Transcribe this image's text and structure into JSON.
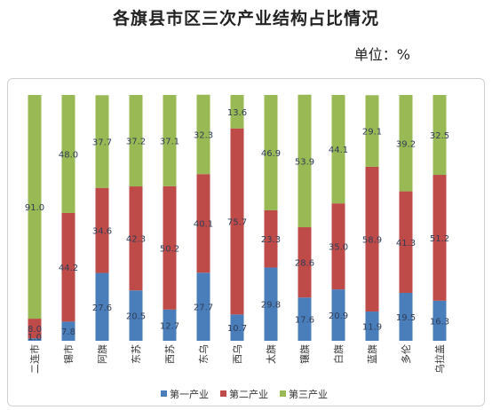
{
  "chart_data": {
    "type": "bar",
    "stacked": true,
    "title": "各旗县市区三次产业结构占比情况",
    "unit": "单位：%",
    "categories": [
      "二连市",
      "锡市",
      "阿旗",
      "东苏",
      "西苏",
      "东乌",
      "西乌",
      "太旗",
      "镶旗",
      "白旗",
      "蓝旗",
      "多伦",
      "乌拉盖"
    ],
    "series": [
      {
        "name": "第一产业",
        "color": "#4a7ebb",
        "values": [
          1.0,
          7.8,
          27.6,
          20.5,
          12.7,
          27.7,
          10.7,
          29.8,
          17.6,
          20.9,
          11.9,
          19.5,
          16.3
        ]
      },
      {
        "name": "第二产业",
        "color": "#be4b48",
        "values": [
          8.0,
          44.2,
          34.6,
          42.3,
          50.2,
          40.1,
          75.7,
          23.3,
          28.6,
          35.0,
          58.9,
          41.3,
          51.2
        ]
      },
      {
        "name": "第三产业",
        "color": "#98b954",
        "values": [
          91.0,
          48.0,
          37.7,
          37.2,
          37.1,
          32.3,
          13.6,
          46.9,
          53.9,
          44.1,
          29.1,
          39.2,
          32.5
        ]
      }
    ],
    "ylim": [
      0,
      100
    ],
    "legend": "bottom"
  }
}
